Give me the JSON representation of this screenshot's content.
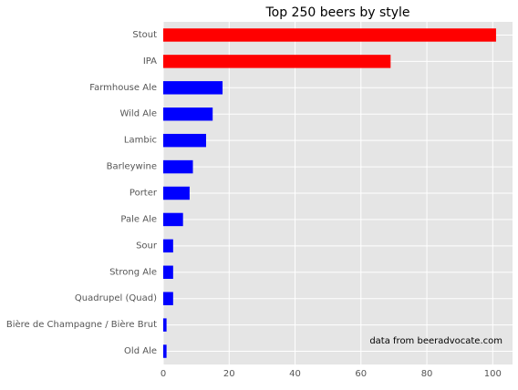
{
  "chart_data": {
    "type": "bar",
    "orientation": "horizontal",
    "title": "Top 250 beers by style",
    "xlabel": "",
    "ylabel": "",
    "categories": [
      "Stout",
      "IPA",
      "Farmhouse Ale",
      "Wild Ale",
      "Lambic",
      "Barleywine",
      "Porter",
      "Pale Ale",
      "Sour",
      "Strong Ale",
      "Quadrupel (Quad)",
      "Bière de Champagne / Bière Brut",
      "Old Ale"
    ],
    "values": [
      101,
      69,
      18,
      15,
      13,
      9,
      8,
      6,
      3,
      3,
      3,
      1,
      1
    ],
    "bar_colors": [
      "#ff0000",
      "#ff0000",
      "#0000ff",
      "#0000ff",
      "#0000ff",
      "#0000ff",
      "#0000ff",
      "#0000ff",
      "#0000ff",
      "#0000ff",
      "#0000ff",
      "#0000ff",
      "#0000ff"
    ],
    "xlim": [
      0,
      106
    ],
    "xticks": [
      0,
      20,
      40,
      60,
      80,
      100
    ],
    "grid": true,
    "style": "ggplot",
    "colors": {
      "plot_background": "#e5e5e5",
      "grid": "#ffffff",
      "tick_text": "#555555",
      "title_text": "#000000"
    },
    "annotation": "data from beeradvocate.com"
  }
}
